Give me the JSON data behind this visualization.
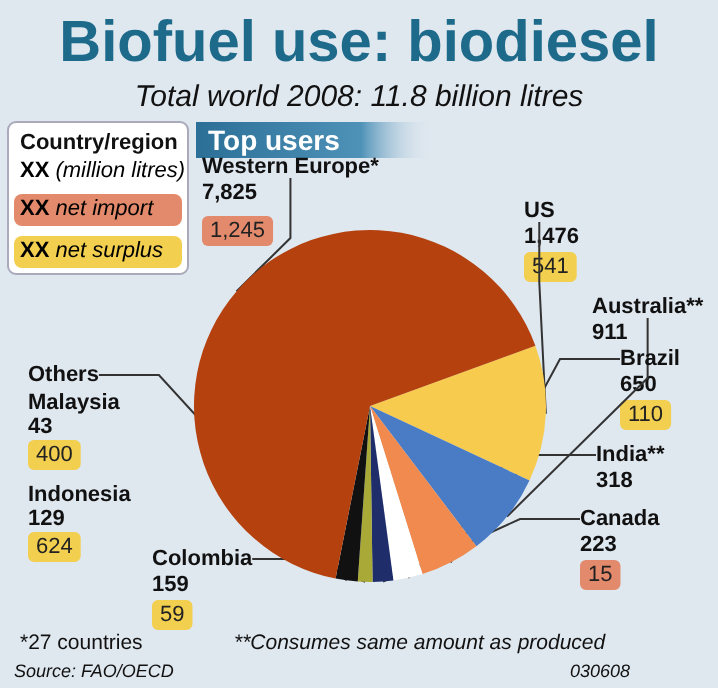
{
  "chart_data": {
    "type": "pie",
    "title": "Biofuel use: biodiesel",
    "subtitle": "Total world 2008: 11.8 billion litres",
    "categories": [
      "US",
      "Australia**",
      "Brazil",
      "India**",
      "Canada",
      "Colombia",
      "Others",
      "Western Europe*"
    ],
    "values": [
      1476,
      911,
      650,
      318,
      223,
      159,
      238,
      7825
    ],
    "value_labels": [
      "1,476",
      "911",
      "650",
      "318",
      "223",
      "159",
      null,
      "7,825"
    ],
    "colors": [
      "#f7cb4d",
      "#4a7cc6",
      "#f08a4e",
      "#ffffff",
      "#1f2d6b",
      "#a9a937",
      "#111111",
      "#b5410f"
    ],
    "annotations": [
      "Country/region",
      "XX (million litres)",
      "XX net import",
      "XX net surplus",
      "Top users",
      "1,245",
      "541",
      "110",
      "15",
      "59",
      "Malaysia",
      "43",
      "400",
      "Indonesia",
      "129",
      "624",
      "*27 countries",
      "**Consumes same amount as produced",
      "Source: FAO/OECD",
      "030608"
    ]
  }
}
